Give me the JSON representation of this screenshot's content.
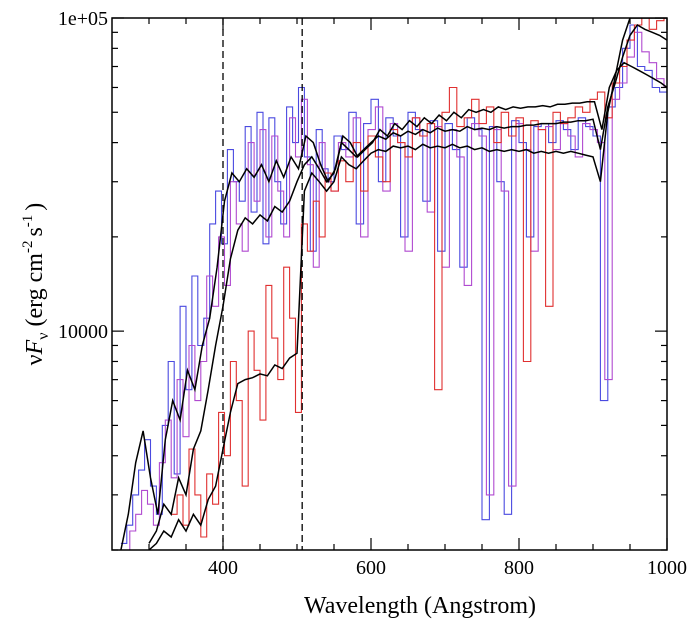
{
  "chart_data": {
    "type": "line",
    "title": "",
    "xlabel": "Wavelength (Angstrom)",
    "ylabel_parts": {
      "nu": "ν",
      "F": "F",
      "sub": "ν",
      "unit_open": "(erg cm",
      "exp1": "-2",
      "unit_mid": "s",
      "exp2": "-1",
      "unit_close": ")"
    },
    "x_scale": "linear",
    "y_scale": "log",
    "xlim": [
      250,
      1000
    ],
    "ylim": [
      2000,
      100000
    ],
    "x_ticks": [
      400,
      600,
      800,
      1000
    ],
    "x_tick_labels": [
      "400",
      "600",
      "800",
      "1000"
    ],
    "y_tick_labels": [
      {
        "value": 10000,
        "label": "10000"
      },
      {
        "value": 100000,
        "label": "1e+05"
      }
    ],
    "vlines": [
      400,
      507
    ],
    "colors": {
      "blue": "#4a4ae0",
      "violet": "#b04ad0",
      "red": "#e03030",
      "black": "#000000"
    },
    "series": [
      {
        "color": "blue",
        "step": true,
        "x": [
          262,
          270,
          278,
          286,
          294,
          302,
          310,
          318,
          326,
          334,
          342,
          350,
          358,
          366,
          374,
          382,
          390,
          398,
          406,
          414,
          422,
          430,
          438,
          446,
          454,
          462,
          470,
          478,
          486,
          494,
          502,
          510,
          518,
          526,
          534,
          542,
          550,
          560,
          570,
          580,
          590,
          600,
          610,
          620,
          630,
          640,
          650,
          660,
          670,
          680,
          690,
          700,
          710,
          720,
          730,
          740,
          750,
          760,
          770,
          780,
          790,
          800,
          810,
          820,
          830,
          840,
          850,
          860,
          870,
          880,
          890,
          900,
          910,
          920,
          930,
          940,
          950,
          960,
          970,
          980,
          990,
          1000
        ],
        "y": [
          2100,
          2400,
          3000,
          3600,
          4500,
          3200,
          2600,
          5000,
          8000,
          3500,
          12000,
          6500,
          15000,
          9000,
          11000,
          22000,
          28000,
          19000,
          38000,
          30000,
          26000,
          45000,
          24000,
          50000,
          19000,
          48000,
          30000,
          22000,
          52000,
          40000,
          60000,
          36000,
          18000,
          44000,
          33000,
          30000,
          42000,
          38000,
          50000,
          22000,
          46000,
          55000,
          30000,
          48000,
          42000,
          20000,
          50000,
          44000,
          26000,
          47000,
          18000,
          46000,
          38000,
          16000,
          48000,
          44000,
          2500,
          45000,
          30000,
          2600,
          47000,
          40000,
          20000,
          45000,
          46000,
          40000,
          47000,
          44000,
          38000,
          48000,
          45000,
          42000,
          6000,
          52000,
          60000,
          80000,
          95000,
          70000,
          68000,
          60000,
          58000,
          60000
        ]
      },
      {
        "color": "violet",
        "step": true,
        "x": [
          266,
          274,
          282,
          290,
          298,
          306,
          314,
          322,
          330,
          338,
          346,
          354,
          362,
          370,
          378,
          386,
          394,
          402,
          410,
          418,
          426,
          434,
          442,
          450,
          458,
          466,
          474,
          482,
          490,
          498,
          506,
          514,
          522,
          530,
          538,
          546,
          556,
          566,
          576,
          586,
          596,
          606,
          616,
          626,
          636,
          646,
          656,
          666,
          676,
          686,
          696,
          706,
          716,
          726,
          736,
          746,
          756,
          766,
          776,
          786,
          796,
          806,
          816,
          826,
          836,
          846,
          856,
          866,
          876,
          886,
          896,
          906,
          916,
          926,
          936,
          946,
          956,
          966,
          976,
          986,
          996
        ],
        "y": [
          2000,
          2300,
          2600,
          3100,
          2800,
          2400,
          3800,
          5200,
          3400,
          7000,
          4600,
          9000,
          6000,
          8000,
          15000,
          12000,
          20000,
          14000,
          30000,
          22000,
          18000,
          40000,
          26000,
          44000,
          20000,
          42000,
          28000,
          20000,
          48000,
          36000,
          55000,
          34000,
          16000,
          40000,
          30000,
          28000,
          40000,
          36000,
          48000,
          20000,
          44000,
          52000,
          28000,
          46000,
          40000,
          18000,
          48000,
          42000,
          24000,
          45000,
          16000,
          44000,
          36000,
          14000,
          46000,
          42000,
          3000,
          44000,
          28000,
          3200,
          46000,
          38000,
          18000,
          44000,
          45000,
          38000,
          46000,
          42000,
          36000,
          46000,
          44000,
          40000,
          7000,
          55000,
          62000,
          75000,
          90000,
          78000,
          72000,
          64000,
          60000
        ]
      },
      {
        "color": "red",
        "step": true,
        "x": [
          330,
          338,
          346,
          354,
          362,
          370,
          378,
          386,
          394,
          402,
          410,
          418,
          426,
          434,
          442,
          450,
          458,
          466,
          474,
          482,
          490,
          498,
          506,
          514,
          522,
          530,
          538,
          546,
          556,
          566,
          576,
          586,
          596,
          606,
          616,
          626,
          636,
          646,
          656,
          666,
          676,
          686,
          696,
          706,
          716,
          726,
          736,
          746,
          756,
          766,
          776,
          786,
          796,
          806,
          816,
          826,
          836,
          846,
          856,
          866,
          876,
          886,
          896,
          906,
          916,
          926,
          936,
          946,
          956,
          966,
          976,
          986,
          996
        ],
        "y": [
          2600,
          3000,
          2400,
          4200,
          3000,
          2200,
          3500,
          2800,
          5500,
          4000,
          8000,
          6000,
          3200,
          10000,
          7500,
          5200,
          14000,
          9500,
          7000,
          16000,
          11000,
          5500,
          22000,
          18000,
          26000,
          20000,
          32000,
          28000,
          35000,
          30000,
          40000,
          28000,
          42000,
          36000,
          30000,
          44000,
          40000,
          36000,
          48000,
          42000,
          46000,
          6500,
          50000,
          60000,
          45000,
          48000,
          55000,
          46000,
          52000,
          40000,
          50000,
          42000,
          48000,
          8000,
          47000,
          44000,
          12000,
          50000,
          46000,
          48000,
          52000,
          50000,
          55000,
          58000,
          48000,
          62000,
          70000,
          85000,
          95000,
          100000,
          92000,
          98000,
          100000
        ]
      },
      {
        "color": "black",
        "step": false,
        "x": [
          262,
          272,
          282,
          292,
          302,
          312,
          322,
          332,
          342,
          352,
          362,
          372,
          382,
          392,
          402,
          412,
          422,
          432,
          442,
          452,
          462,
          472,
          482,
          492,
          502,
          512,
          522,
          532,
          542,
          552,
          562,
          572,
          582,
          592,
          602,
          612,
          622,
          632,
          642,
          652,
          662,
          672,
          682,
          692,
          702,
          712,
          722,
          732,
          742,
          752,
          762,
          772,
          782,
          792,
          802,
          812,
          822,
          832,
          842,
          852,
          862,
          872,
          882,
          892,
          902,
          912,
          922,
          932,
          942,
          952,
          962,
          972,
          982,
          992,
          1000
        ],
        "y": [
          2000,
          2600,
          3800,
          4800,
          3400,
          2600,
          4500,
          6000,
          5200,
          7500,
          6500,
          9000,
          11000,
          16000,
          26000,
          32000,
          30000,
          33000,
          31000,
          34000,
          30000,
          35000,
          31000,
          36000,
          33000,
          42000,
          40000,
          34000,
          30000,
          33000,
          42000,
          40000,
          36000,
          38000,
          40000,
          44000,
          42000,
          46000,
          44000,
          47000,
          45000,
          48000,
          46000,
          49000,
          47000,
          50000,
          48000,
          51000,
          50000,
          51000,
          50000,
          52000,
          51000,
          52000,
          51500,
          52000,
          52000,
          52500,
          52000,
          53000,
          53000,
          53500,
          53500,
          54000,
          54000,
          44000,
          60000,
          68000,
          72000,
          70000,
          68000,
          66000,
          64000,
          62000,
          60000
        ]
      },
      {
        "color": "black",
        "step": false,
        "x": [
          300,
          310,
          320,
          330,
          340,
          350,
          360,
          370,
          380,
          390,
          400,
          410,
          420,
          430,
          440,
          450,
          460,
          470,
          480,
          490,
          500,
          510,
          520,
          530,
          540,
          550,
          560,
          570,
          580,
          590,
          600,
          610,
          620,
          630,
          640,
          650,
          660,
          670,
          680,
          690,
          700,
          710,
          720,
          730,
          740,
          750,
          760,
          770,
          780,
          790,
          800,
          810,
          820,
          830,
          840,
          850,
          860,
          870,
          880,
          890,
          900,
          910,
          920,
          930,
          940,
          950,
          960,
          970,
          980,
          990,
          1000
        ],
        "y": [
          2100,
          2300,
          2800,
          2600,
          3400,
          3000,
          4200,
          4800,
          6500,
          9000,
          12000,
          17000,
          21000,
          23000,
          22000,
          23500,
          22500,
          25000,
          24000,
          26000,
          30000,
          34000,
          36000,
          33000,
          30000,
          32000,
          40000,
          38000,
          36000,
          38000,
          40000,
          42000,
          41000,
          43000,
          42000,
          43500,
          42500,
          44000,
          43000,
          44500,
          43500,
          44000,
          43500,
          45000,
          44000,
          44500,
          44000,
          45000,
          44500,
          45000,
          45000,
          45500,
          45500,
          46000,
          46000,
          46000,
          46500,
          46500,
          47000,
          47000,
          47500,
          38000,
          52000,
          62000,
          75000,
          88000,
          95000,
          92000,
          90000,
          88000,
          85000
        ]
      },
      {
        "color": "black",
        "step": false,
        "x": [
          300,
          310,
          320,
          330,
          340,
          350,
          360,
          370,
          380,
          390,
          400,
          410,
          420,
          430,
          440,
          450,
          460,
          470,
          480,
          490,
          500,
          510,
          520,
          530,
          540,
          550,
          560,
          570,
          580,
          590,
          600,
          610,
          620,
          630,
          640,
          650,
          660,
          670,
          680,
          690,
          700,
          710,
          720,
          730,
          740,
          750,
          760,
          770,
          780,
          790,
          800,
          810,
          820,
          830,
          840,
          850,
          860,
          870,
          880,
          890,
          900,
          910,
          920,
          930,
          940,
          950,
          960,
          970,
          980,
          990,
          1000
        ],
        "y": [
          2000,
          2100,
          2300,
          2200,
          2500,
          2300,
          2600,
          2400,
          2900,
          3200,
          4200,
          5500,
          6800,
          7000,
          7100,
          7300,
          7200,
          7800,
          7600,
          8200,
          8500,
          28000,
          32000,
          30000,
          28000,
          30000,
          36000,
          34000,
          33000,
          35000,
          37000,
          38000,
          37500,
          39000,
          38500,
          39000,
          38000,
          39500,
          38500,
          39000,
          38500,
          39500,
          38500,
          39000,
          38000,
          38500,
          37500,
          38000,
          37500,
          38000,
          37500,
          38000,
          37000,
          37500,
          37000,
          37500,
          37000,
          37500,
          37000,
          36500,
          36000,
          30000,
          50000,
          65000,
          85000,
          100000,
          100000,
          100000,
          100000,
          100000,
          100000
        ]
      }
    ]
  }
}
